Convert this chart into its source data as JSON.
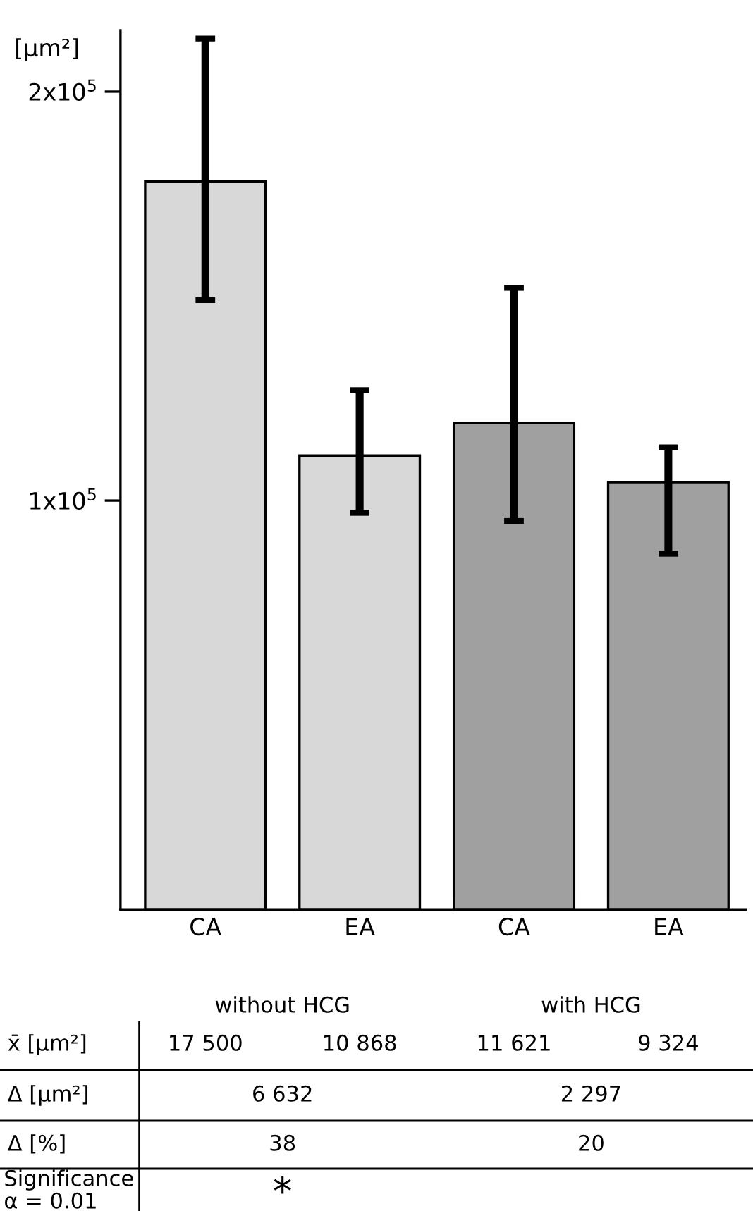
{
  "chart_data": {
    "type": "bar",
    "ylabel": "[µm²]",
    "categories": [
      "CA",
      "EA",
      "CA",
      "EA"
    ],
    "values": [
      178000,
      111000,
      119000,
      104500
    ],
    "errors": [
      [
        149000,
        213000
      ],
      [
        97000,
        127000
      ],
      [
        95000,
        152000
      ],
      [
        87000,
        113000
      ]
    ],
    "colors": [
      "#d8d8d8",
      "#d8d8d8",
      "#a0a0a0",
      "#a0a0a0"
    ],
    "ylim": [
      0,
      215000
    ],
    "yticks": [
      {
        "value": 100000,
        "label": "1x10$^{5}$"
      },
      {
        "value": 200000,
        "label": "2x10$^{5}$"
      }
    ],
    "grid": false,
    "legend": false,
    "annotations": [
      "without HCG",
      "with HCG",
      "x̄ [µm²]",
      "17 500",
      "10 868",
      "11 621",
      "9 324",
      "Δ [µm²]",
      "6 632",
      "2 297",
      "Δ [%]",
      "38",
      "20",
      "Significance\nα = 0.01",
      "*"
    ]
  }
}
